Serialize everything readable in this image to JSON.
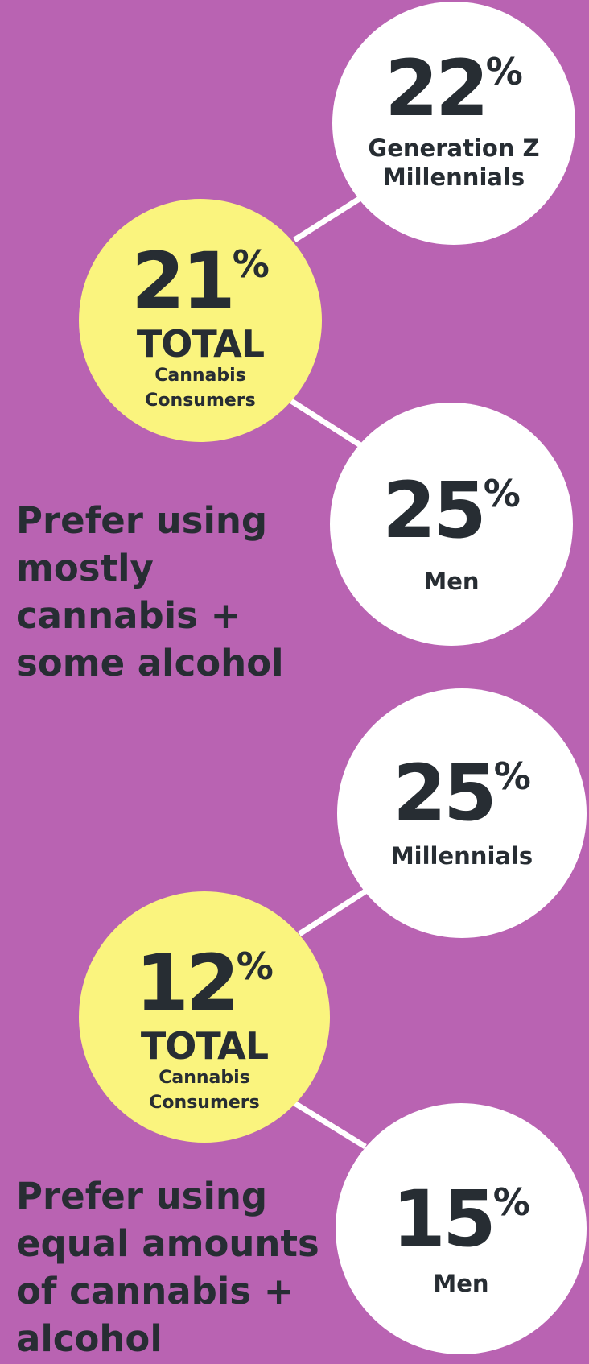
{
  "colors": {
    "background": "#b963b2",
    "total_circle": "#faf47e",
    "segment_circle": "#ffffff",
    "text": "#272d33",
    "connector": "#ffffff"
  },
  "groups": [
    {
      "total": {
        "value": "21",
        "percent_sign": "%",
        "title": "TOTAL",
        "label_lines": [
          "Cannabis",
          "Consumers"
        ]
      },
      "top": {
        "value": "22",
        "percent_sign": "%",
        "label_lines": [
          "Generation Z",
          "Millennials"
        ]
      },
      "bottom": {
        "value": "25",
        "percent_sign": "%",
        "label_lines": [
          "Men"
        ]
      },
      "statement_lines": [
        "Prefer using",
        "mostly",
        "cannabis +",
        "some alcohol"
      ]
    },
    {
      "total": {
        "value": "12",
        "percent_sign": "%",
        "title": "TOTAL",
        "label_lines": [
          "Cannabis",
          "Consumers"
        ]
      },
      "top": {
        "value": "25",
        "percent_sign": "%",
        "label_lines": [
          "Millennials"
        ]
      },
      "bottom": {
        "value": "15",
        "percent_sign": "%",
        "label_lines": [
          "Men"
        ]
      },
      "statement_lines": [
        "Prefer using",
        "equal amounts",
        "of cannabis +",
        "alcohol"
      ]
    }
  ]
}
